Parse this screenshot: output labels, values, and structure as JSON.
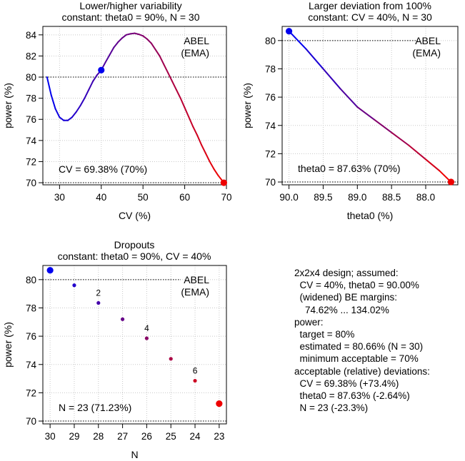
{
  "colors": {
    "start": "#0000ee",
    "end": "#ee0000",
    "axis": "#000000",
    "grid": "#c8c8c8"
  },
  "chart_data": [
    {
      "type": "line",
      "title": "Lower/higher variability",
      "subtitle": "constant: theta0 = 90%, N = 30",
      "xlabel": "CV (%)",
      "ylabel": "power (%)",
      "xlim": [
        26,
        70
      ],
      "ylim": [
        69.8,
        84.8
      ],
      "xticks": [
        30,
        40,
        50,
        60,
        70
      ],
      "xtick_labels": [
        "30",
        "40",
        "50",
        "60",
        "70"
      ],
      "yticks": [
        70,
        72,
        74,
        76,
        78,
        80,
        82,
        84
      ],
      "grid": true,
      "target_line": 80,
      "min_line": 70,
      "legend": [
        "ABEL",
        "(EMA)"
      ],
      "legend_position": "top-right",
      "annotation": "CV = 69.38% (70%)",
      "annotation_position": "bottom-left",
      "series": [
        {
          "x": [
            27,
            28,
            29,
            30,
            31,
            32,
            33,
            34,
            35,
            36,
            37,
            38,
            39,
            40,
            41,
            42,
            43,
            44,
            45,
            46,
            47,
            48,
            49,
            50,
            51,
            52,
            53,
            54,
            55,
            56,
            57,
            58,
            59,
            60,
            61,
            62,
            63,
            64,
            65,
            66,
            67,
            68,
            69.38
          ],
          "y": [
            80.0,
            78.3,
            77.0,
            76.2,
            75.9,
            75.9,
            76.2,
            76.7,
            77.3,
            78.0,
            78.8,
            79.6,
            80.2,
            80.66,
            81.4,
            82.1,
            82.8,
            83.3,
            83.7,
            84.0,
            84.1,
            84.15,
            84.05,
            83.9,
            83.6,
            83.2,
            82.6,
            82.0,
            81.2,
            80.4,
            79.6,
            78.8,
            78.0,
            77.1,
            76.2,
            75.3,
            74.5,
            73.6,
            72.8,
            72.0,
            71.3,
            70.7,
            70.0
          ]
        }
      ],
      "markers": [
        {
          "x": 40,
          "y": 80.66,
          "color": "blue"
        },
        {
          "x": 69.38,
          "y": 70.0,
          "color": "red"
        }
      ]
    },
    {
      "type": "line",
      "title": "Larger deviation from 100%",
      "subtitle": "constant: CV = 40%, N = 30",
      "xlabel": "theta0 (%)",
      "ylabel": "power (%)",
      "xlim": [
        90.1,
        87.53
      ],
      "ylim": [
        69.8,
        81.0
      ],
      "xticks": [
        90.0,
        89.5,
        89.0,
        88.5,
        88.0
      ],
      "xtick_labels": [
        "90.0",
        "89.5",
        "89.0",
        "88.5",
        "88.0"
      ],
      "yticks": [
        70,
        72,
        74,
        76,
        78,
        80
      ],
      "grid": true,
      "target_line": 80,
      "min_line": 70,
      "legend": [
        "ABEL",
        "(EMA)"
      ],
      "legend_position": "top-right",
      "annotation": "theta0 = 87.63% (70%)",
      "annotation_position": "bottom-left",
      "series": [
        {
          "x": [
            90.0,
            89.75,
            89.5,
            89.25,
            89.0,
            88.75,
            88.5,
            88.25,
            88.0,
            87.8,
            87.63
          ],
          "y": [
            80.66,
            79.4,
            78.0,
            76.6,
            75.3,
            74.4,
            73.5,
            72.6,
            71.6,
            70.8,
            70.0
          ]
        }
      ],
      "markers": [
        {
          "x": 90.0,
          "y": 80.66,
          "color": "blue"
        },
        {
          "x": 87.63,
          "y": 70.0,
          "color": "red"
        }
      ]
    },
    {
      "type": "scatter",
      "title": "Dropouts",
      "subtitle": "constant: theta0 = 90%, CV = 40%",
      "xlabel": "N",
      "ylabel": "power (%)",
      "xlim": [
        30.3,
        22.7
      ],
      "ylim": [
        69.8,
        81.0
      ],
      "xticks": [
        30,
        29,
        28,
        27,
        26,
        25,
        24,
        23
      ],
      "xtick_labels": [
        "30",
        "29",
        "28",
        "27",
        "26",
        "25",
        "24",
        "23"
      ],
      "yticks": [
        70,
        72,
        74,
        76,
        78,
        80
      ],
      "grid": true,
      "target_line": 80,
      "min_line": 70,
      "legend": [
        "ABEL",
        "(EMA)"
      ],
      "legend_position": "top-right",
      "annotation": "N = 23 (71.23%)",
      "annotation_position": "bottom-left",
      "series": [
        {
          "x": [
            30,
            29,
            28,
            27,
            26,
            25,
            24,
            23
          ],
          "y": [
            80.66,
            79.6,
            78.35,
            77.2,
            75.85,
            74.4,
            72.85,
            71.23
          ]
        }
      ],
      "point_labels": [
        {
          "x": 28,
          "y": 78.35,
          "text": "2"
        },
        {
          "x": 26,
          "y": 75.85,
          "text": "4"
        },
        {
          "x": 24,
          "y": 72.85,
          "text": "6"
        }
      ],
      "markers": [
        {
          "x": 30,
          "y": 80.66,
          "color": "blue"
        },
        {
          "x": 23,
          "y": 71.23,
          "color": "red"
        }
      ]
    }
  ],
  "info": {
    "lines": [
      "2x2x4 design; assumed:",
      "  CV = 40%, theta0 = 90.00%",
      "  (widened) BE margins:",
      "    74.62% ... 134.02%",
      "power:",
      "  target = 80%",
      "  estimated = 80.66% (N = 30)",
      "  minimum acceptable = 70%",
      "acceptable (relative) deviations:",
      "  CV = 69.38% (+73.4%)",
      "  theta0 = 87.63% (-2.64%)",
      "  N = 23 (-23.3%)"
    ]
  }
}
